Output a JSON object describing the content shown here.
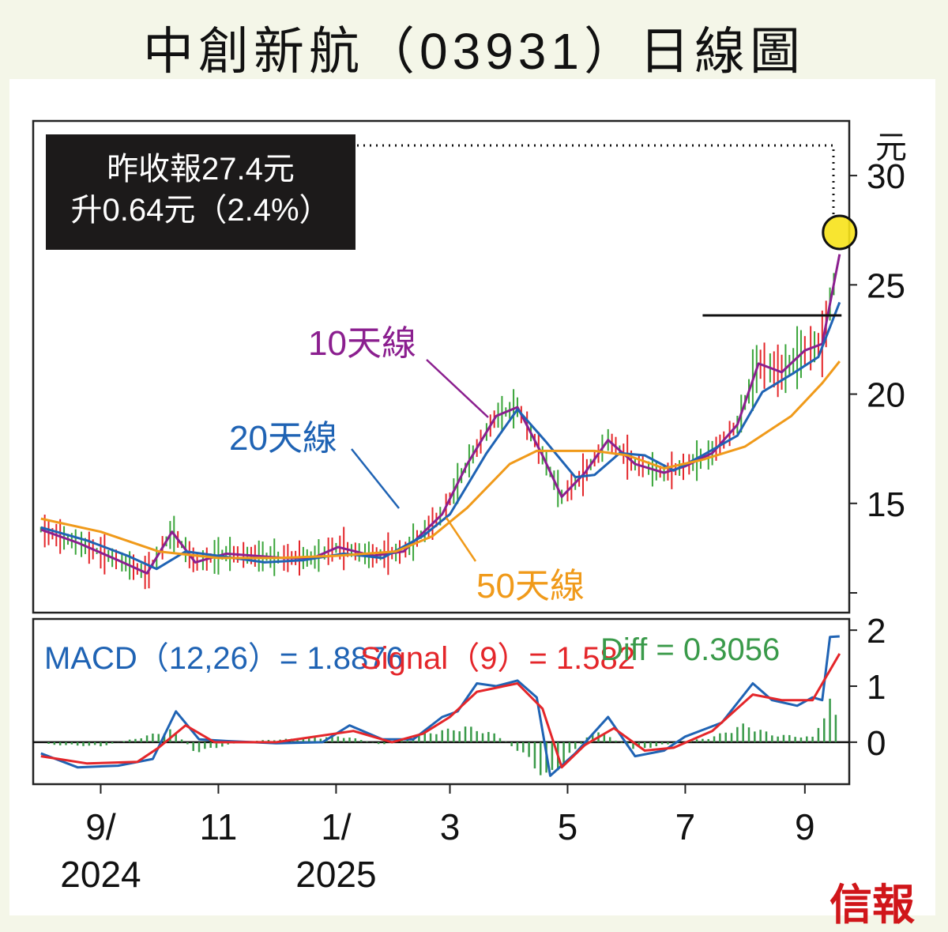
{
  "title": "中創新航（03931）日線圖",
  "info_box": {
    "line1": "昨收報27.4元",
    "line2": "升0.64元（2.4%）"
  },
  "unit": "元",
  "labels": {
    "ma10": "10天線",
    "ma20": "20天線",
    "ma50": "50天線"
  },
  "macd_legend": {
    "macd": "MACD（12,26）= 1.8876",
    "signal": "Signal（9）= 1.582",
    "diff": "Diff = 0.3056"
  },
  "logo": "信報",
  "colors": {
    "up": "#e4262a",
    "down": "#3aa53a",
    "ma10": "#8b1f8f",
    "ma20": "#1f63b4",
    "ma50": "#f09a1a",
    "macd": "#1f63b4",
    "signal": "#e4262a",
    "diff": "#3a9a4a",
    "highlight": "#f7e21a"
  },
  "chart_data": [
    {
      "type": "candlestick",
      "title": "中創新航（03931）日線圖",
      "ylabel": "元",
      "y_ticks": [
        15,
        20,
        25,
        30
      ],
      "ylim": [
        10,
        32.5
      ],
      "x_tick_labels": [
        {
          "month": "9/",
          "year": "2024"
        },
        {
          "month": "11",
          "year": ""
        },
        {
          "month": "1/",
          "year": "2025"
        },
        {
          "month": "3",
          "year": ""
        },
        {
          "month": "5",
          "year": ""
        },
        {
          "month": "7",
          "year": ""
        },
        {
          "month": "9",
          "year": ""
        }
      ],
      "series": [
        {
          "name": "10天線",
          "points": [
            [
              "2024-08-01",
              13.8
            ],
            [
              "2024-08-20",
              13.2
            ],
            [
              "2024-09-10",
              12.4
            ],
            [
              "2024-09-25",
              11.8
            ],
            [
              "2024-10-08",
              13.7
            ],
            [
              "2024-10-20",
              12.3
            ],
            [
              "2024-11-05",
              12.7
            ],
            [
              "2024-11-20",
              12.6
            ],
            [
              "2024-12-05",
              12.5
            ],
            [
              "2024-12-20",
              12.5
            ],
            [
              "2025-01-02",
              13.0
            ],
            [
              "2025-01-20",
              12.6
            ],
            [
              "2025-02-05",
              12.8
            ],
            [
              "2025-02-25",
              14.5
            ],
            [
              "2025-03-10",
              16.8
            ],
            [
              "2025-03-25",
              19.0
            ],
            [
              "2025-04-05",
              19.4
            ],
            [
              "2025-04-18",
              17.2
            ],
            [
              "2025-04-28",
              15.3
            ],
            [
              "2025-05-10",
              16.4
            ],
            [
              "2025-05-22",
              17.9
            ],
            [
              "2025-06-05",
              16.8
            ],
            [
              "2025-06-20",
              16.4
            ],
            [
              "2025-07-01",
              16.7
            ],
            [
              "2025-07-15",
              17.3
            ],
            [
              "2025-07-28",
              18.6
            ],
            [
              "2025-08-08",
              21.4
            ],
            [
              "2025-08-20",
              21.0
            ],
            [
              "2025-09-01",
              22.0
            ],
            [
              "2025-09-10",
              22.3
            ],
            [
              "2025-09-19",
              26.4
            ]
          ]
        },
        {
          "name": "20天線",
          "points": [
            [
              "2024-08-01",
              13.9
            ],
            [
              "2024-08-25",
              13.3
            ],
            [
              "2024-09-15",
              12.6
            ],
            [
              "2024-09-30",
              12.0
            ],
            [
              "2024-10-15",
              12.8
            ],
            [
              "2024-11-01",
              12.6
            ],
            [
              "2024-11-25",
              12.3
            ],
            [
              "2024-12-15",
              12.4
            ],
            [
              "2025-01-05",
              12.7
            ],
            [
              "2025-01-25",
              12.5
            ],
            [
              "2025-02-15",
              13.5
            ],
            [
              "2025-03-01",
              14.5
            ],
            [
              "2025-03-20",
              17.3
            ],
            [
              "2025-04-05",
              19.3
            ],
            [
              "2025-04-20",
              17.8
            ],
            [
              "2025-05-05",
              16.2
            ],
            [
              "2025-05-15",
              16.3
            ],
            [
              "2025-05-28",
              17.3
            ],
            [
              "2025-06-10",
              17.2
            ],
            [
              "2025-06-25",
              16.5
            ],
            [
              "2025-07-10",
              17.2
            ],
            [
              "2025-07-28",
              18.1
            ],
            [
              "2025-08-10",
              20.1
            ],
            [
              "2025-08-25",
              20.9
            ],
            [
              "2025-09-08",
              21.7
            ],
            [
              "2025-09-19",
              24.2
            ]
          ]
        },
        {
          "name": "50天線",
          "points": [
            [
              "2024-08-01",
              14.3
            ],
            [
              "2024-09-01",
              13.7
            ],
            [
              "2024-10-01",
              12.8
            ],
            [
              "2024-11-01",
              12.5
            ],
            [
              "2024-12-01",
              12.5
            ],
            [
              "2025-01-01",
              12.6
            ],
            [
              "2025-02-01",
              12.8
            ],
            [
              "2025-02-20",
              13.5
            ],
            [
              "2025-03-10",
              14.8
            ],
            [
              "2025-04-01",
              16.8
            ],
            [
              "2025-04-15",
              17.4
            ],
            [
              "2025-05-15",
              17.4
            ],
            [
              "2025-06-01",
              17.2
            ],
            [
              "2025-06-20",
              16.6
            ],
            [
              "2025-07-10",
              17.0
            ],
            [
              "2025-08-01",
              17.6
            ],
            [
              "2025-08-25",
              19.0
            ],
            [
              "2025-09-10",
              20.5
            ],
            [
              "2025-09-19",
              21.5
            ]
          ]
        }
      ],
      "annotations": [
        {
          "type": "horizontal_line",
          "value": 23.6,
          "from": "2025-07-10",
          "to": "2025-09-20"
        },
        {
          "type": "marker",
          "date": "2025-09-19",
          "value": 27.4
        }
      ]
    },
    {
      "type": "line",
      "title": "MACD",
      "y_ticks": [
        0,
        1,
        2
      ],
      "ylim": [
        -0.75,
        2.2
      ],
      "series": [
        {
          "name": "MACD（12,26）",
          "points": [
            [
              "2024-08-01",
              -0.2
            ],
            [
              "2024-08-20",
              -0.45
            ],
            [
              "2024-09-10",
              -0.42
            ],
            [
              "2024-09-28",
              -0.3
            ],
            [
              "2024-10-10",
              0.55
            ],
            [
              "2024-10-22",
              0.05
            ],
            [
              "2024-11-05",
              0.02
            ],
            [
              "2024-12-01",
              -0.02
            ],
            [
              "2024-12-25",
              0.0
            ],
            [
              "2025-01-08",
              0.3
            ],
            [
              "2025-01-25",
              0.05
            ],
            [
              "2025-02-10",
              0.05
            ],
            [
              "2025-02-25",
              0.45
            ],
            [
              "2025-03-05",
              0.55
            ],
            [
              "2025-03-15",
              1.05
            ],
            [
              "2025-03-25",
              1.0
            ],
            [
              "2025-04-05",
              1.1
            ],
            [
              "2025-04-15",
              0.8
            ],
            [
              "2025-04-22",
              -0.6
            ],
            [
              "2025-05-05",
              -0.2
            ],
            [
              "2025-05-22",
              0.45
            ],
            [
              "2025-06-05",
              -0.25
            ],
            [
              "2025-06-20",
              -0.15
            ],
            [
              "2025-07-01",
              0.1
            ],
            [
              "2025-07-20",
              0.35
            ],
            [
              "2025-08-05",
              1.05
            ],
            [
              "2025-08-15",
              0.75
            ],
            [
              "2025-08-28",
              0.65
            ],
            [
              "2025-09-05",
              0.8
            ],
            [
              "2025-09-10",
              0.75
            ],
            [
              "2025-09-14",
              1.88
            ],
            [
              "2025-09-19",
              1.89
            ]
          ]
        },
        {
          "name": "Signal（9）",
          "points": [
            [
              "2024-08-01",
              -0.25
            ],
            [
              "2024-08-25",
              -0.38
            ],
            [
              "2024-09-20",
              -0.35
            ],
            [
              "2024-10-01",
              -0.1
            ],
            [
              "2024-10-15",
              0.3
            ],
            [
              "2024-10-30",
              0.0
            ],
            [
              "2024-12-01",
              0.0
            ],
            [
              "2025-01-10",
              0.2
            ],
            [
              "2025-01-30",
              0.0
            ],
            [
              "2025-02-15",
              0.15
            ],
            [
              "2025-03-01",
              0.45
            ],
            [
              "2025-03-15",
              0.9
            ],
            [
              "2025-04-05",
              1.05
            ],
            [
              "2025-04-18",
              0.6
            ],
            [
              "2025-04-28",
              -0.45
            ],
            [
              "2025-05-10",
              -0.05
            ],
            [
              "2025-05-25",
              0.25
            ],
            [
              "2025-06-10",
              -0.15
            ],
            [
              "2025-06-25",
              -0.1
            ],
            [
              "2025-07-15",
              0.2
            ],
            [
              "2025-08-05",
              0.85
            ],
            [
              "2025-08-20",
              0.75
            ],
            [
              "2025-09-05",
              0.75
            ],
            [
              "2025-09-19",
              1.58
            ]
          ]
        },
        {
          "name": "Diff",
          "style": "histogram",
          "points": [
            [
              "2024-08-05",
              -0.05
            ],
            [
              "2024-09-01",
              -0.08
            ],
            [
              "2024-09-20",
              0.08
            ],
            [
              "2024-10-08",
              0.25
            ],
            [
              "2024-10-20",
              -0.2
            ],
            [
              "2024-11-15",
              0.02
            ],
            [
              "2025-01-05",
              0.12
            ],
            [
              "2025-01-25",
              -0.05
            ],
            [
              "2025-02-20",
              0.2
            ],
            [
              "2025-03-10",
              0.3
            ],
            [
              "2025-03-25",
              0.15
            ],
            [
              "2025-04-10",
              -0.3
            ],
            [
              "2025-04-20",
              -0.75
            ],
            [
              "2025-05-15",
              0.25
            ],
            [
              "2025-06-05",
              -0.15
            ],
            [
              "2025-07-15",
              0.1
            ],
            [
              "2025-08-01",
              0.35
            ],
            [
              "2025-08-15",
              0.15
            ],
            [
              "2025-09-05",
              0.1
            ],
            [
              "2025-09-14",
              0.8
            ],
            [
              "2025-09-19",
              0.31
            ]
          ]
        }
      ]
    }
  ]
}
